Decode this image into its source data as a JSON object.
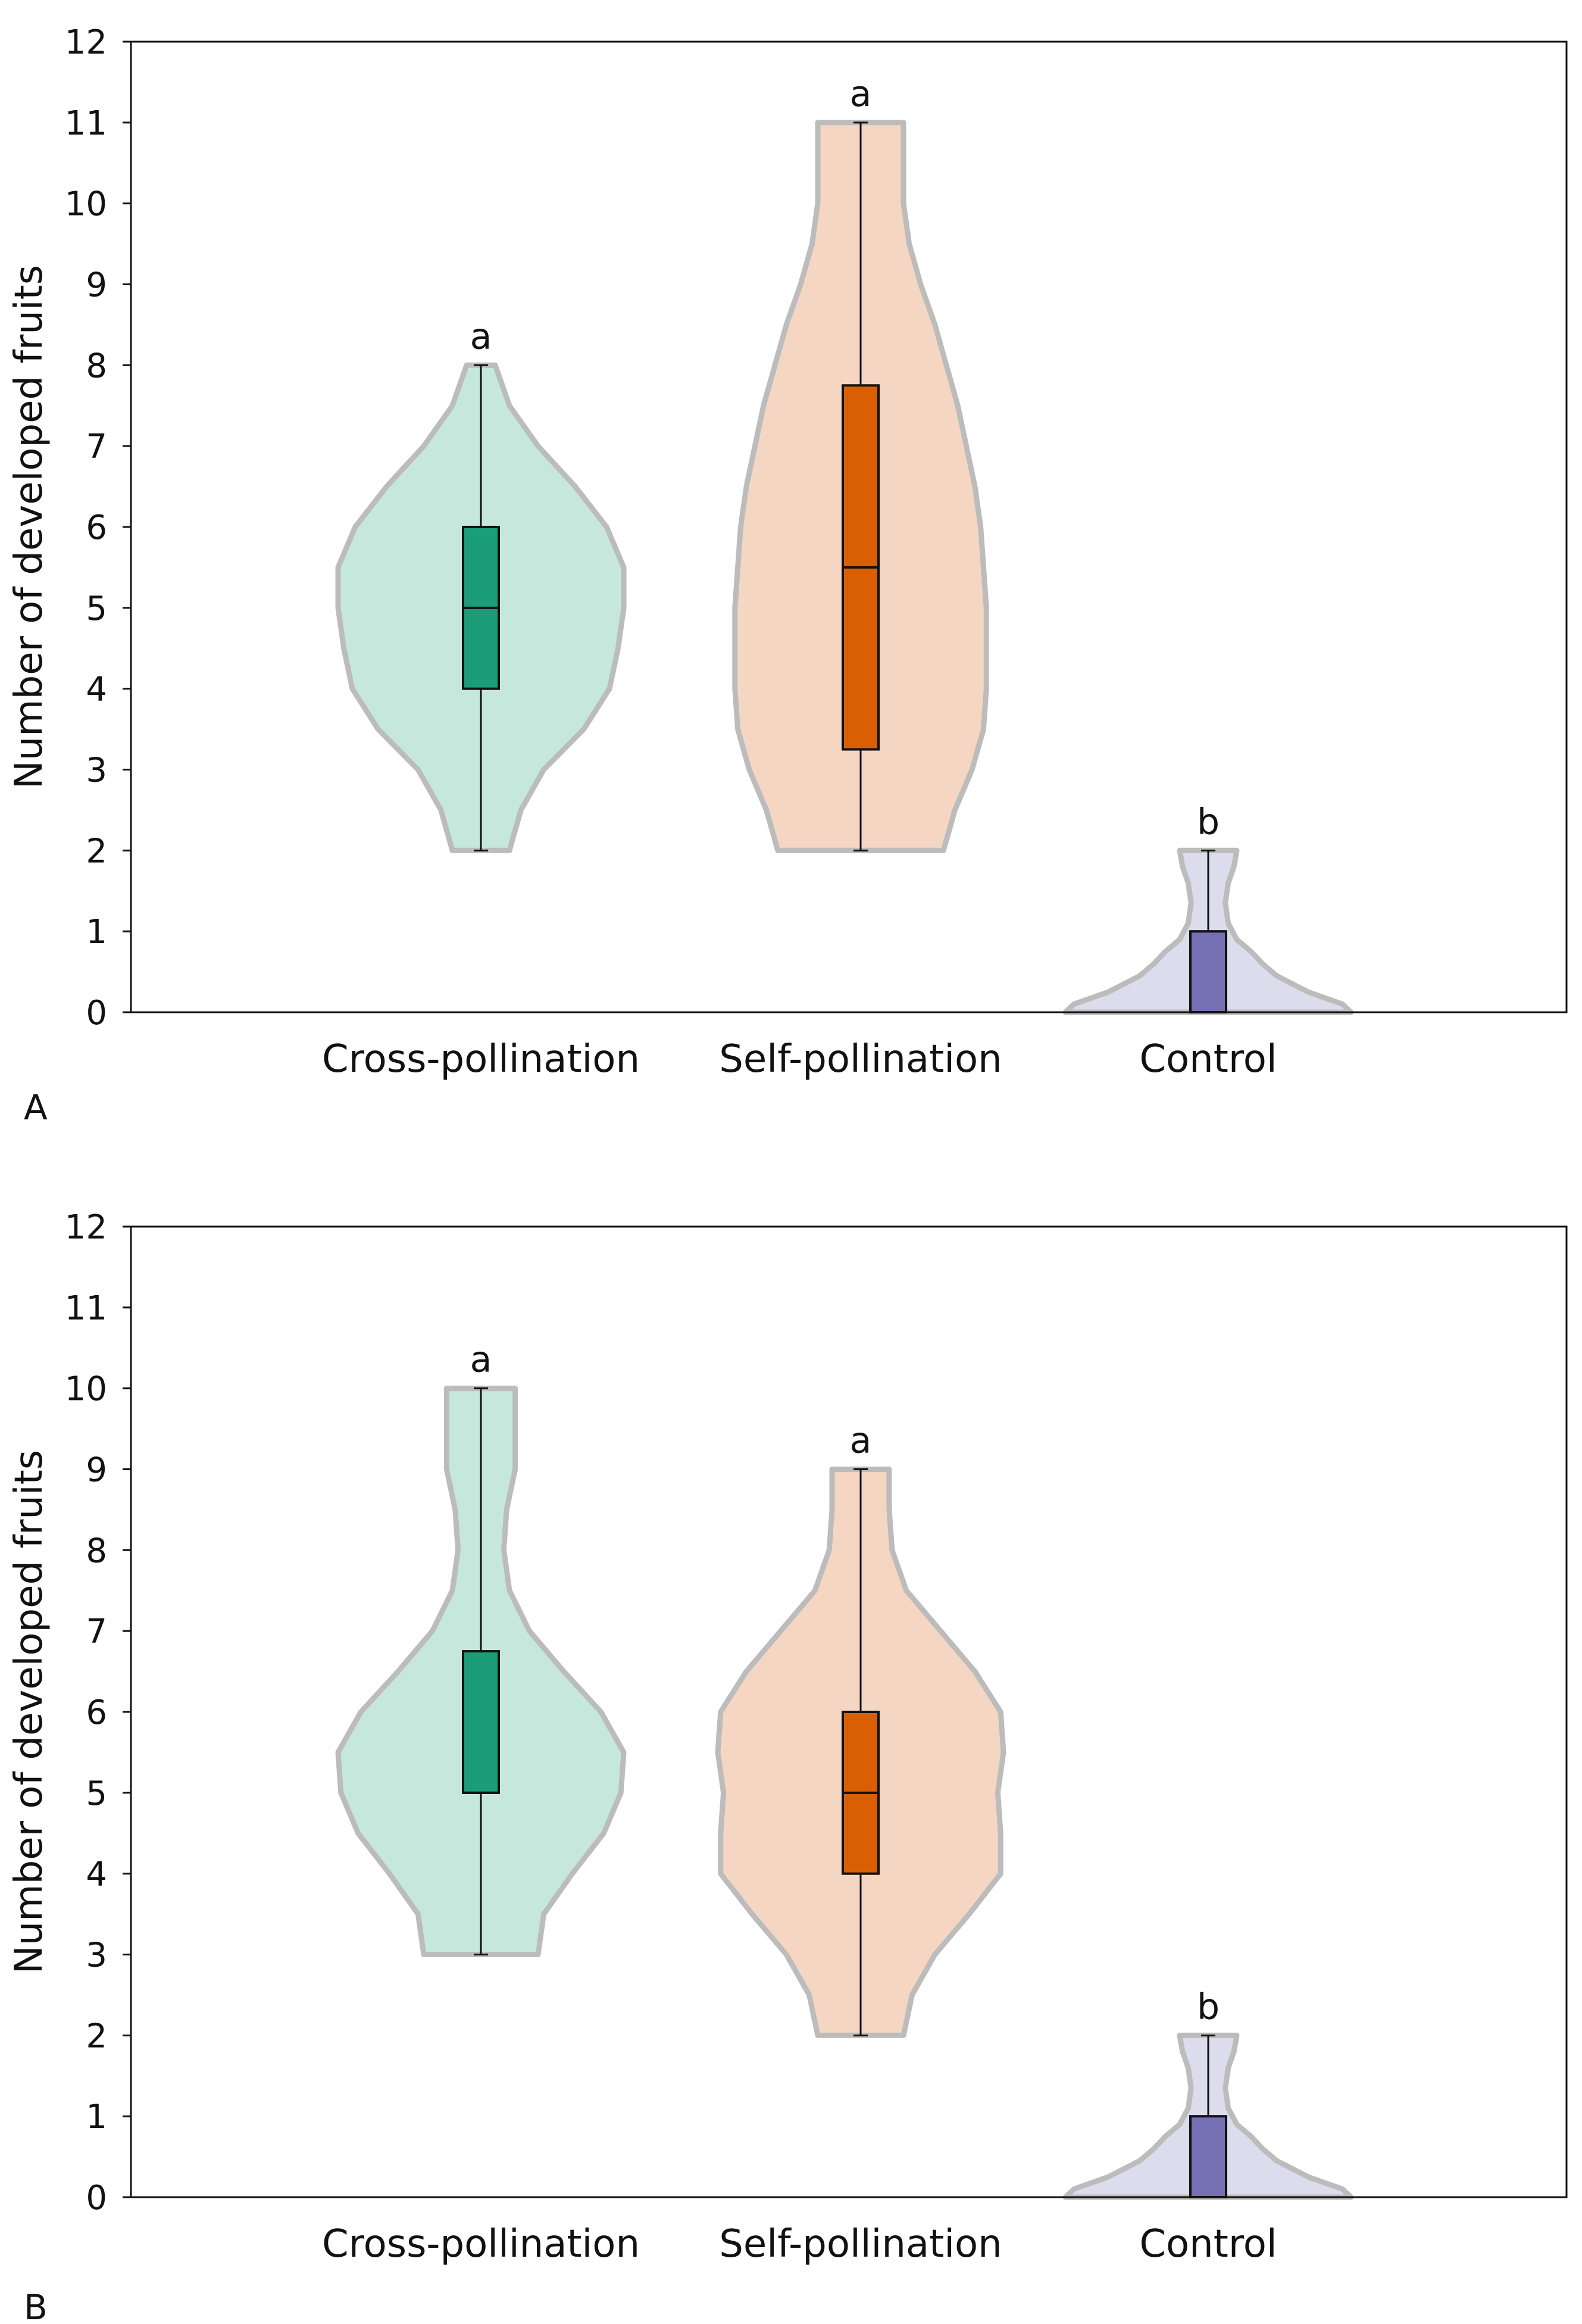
{
  "chart_data": [
    {
      "panel_label": "A",
      "type": "violin",
      "ylabel": "Number of developed fruits",
      "xlabel": "",
      "ylim": [
        0,
        12
      ],
      "yticks": [
        "0",
        "1",
        "2",
        "3",
        "4",
        "5",
        "6",
        "7",
        "8",
        "9",
        "10",
        "11",
        "12"
      ],
      "grid": false,
      "categories": [
        "Cross-pollination",
        "Self-pollination",
        "Control"
      ],
      "series": [
        {
          "name": "Cross-pollination",
          "color": "#1b9e77",
          "fill": "#c6e8dc",
          "significance": "a",
          "min": 2,
          "q1": 4,
          "median": 5,
          "q3": 6,
          "max": 8,
          "density": [
            [
              2,
              0.1
            ],
            [
              2.5,
              0.14
            ],
            [
              3,
              0.22
            ],
            [
              3.5,
              0.36
            ],
            [
              4,
              0.45
            ],
            [
              4.5,
              0.48
            ],
            [
              5,
              0.5
            ],
            [
              5.5,
              0.5
            ],
            [
              6,
              0.44
            ],
            [
              6.5,
              0.33
            ],
            [
              7,
              0.2
            ],
            [
              7.5,
              0.1
            ],
            [
              8,
              0.05
            ]
          ]
        },
        {
          "name": "Self-pollination",
          "color": "#d95f02",
          "fill": "#f5d6c3",
          "significance": "a",
          "min": 2,
          "q1": 3.25,
          "median": 5.5,
          "q3": 7.75,
          "max": 11,
          "density": [
            [
              2,
              0.29
            ],
            [
              2.5,
              0.33
            ],
            [
              3,
              0.39
            ],
            [
              3.5,
              0.43
            ],
            [
              4,
              0.44
            ],
            [
              4.5,
              0.44
            ],
            [
              5,
              0.44
            ],
            [
              5.5,
              0.43
            ],
            [
              6,
              0.42
            ],
            [
              6.5,
              0.4
            ],
            [
              7,
              0.37
            ],
            [
              7.5,
              0.34
            ],
            [
              8,
              0.3
            ],
            [
              8.5,
              0.26
            ],
            [
              9,
              0.21
            ],
            [
              9.5,
              0.17
            ],
            [
              10,
              0.15
            ],
            [
              10.5,
              0.15
            ],
            [
              11,
              0.15
            ]
          ]
        },
        {
          "name": "Control",
          "color": "#7570b3",
          "fill": "#dcdcec",
          "significance": "b",
          "min": 0,
          "q1": 0,
          "median": 0,
          "q3": 1,
          "max": 2,
          "density": [
            [
              0,
              0.5
            ],
            [
              0.1,
              0.47
            ],
            [
              0.25,
              0.35
            ],
            [
              0.45,
              0.24
            ],
            [
              0.6,
              0.19
            ],
            [
              0.75,
              0.15
            ],
            [
              0.9,
              0.1
            ],
            [
              1.1,
              0.07
            ],
            [
              1.35,
              0.06
            ],
            [
              1.6,
              0.07
            ],
            [
              1.8,
              0.09
            ],
            [
              2,
              0.1
            ]
          ]
        }
      ]
    },
    {
      "panel_label": "B",
      "type": "violin",
      "ylabel": "Number of developed fruits",
      "xlabel": "",
      "ylim": [
        0,
        12
      ],
      "yticks": [
        "0",
        "1",
        "2",
        "3",
        "4",
        "5",
        "6",
        "7",
        "8",
        "9",
        "10",
        "11",
        "12"
      ],
      "grid": false,
      "categories": [
        "Cross-pollination",
        "Self-pollination",
        "Control"
      ],
      "series": [
        {
          "name": "Cross-pollination",
          "color": "#1b9e77",
          "fill": "#c6e8dc",
          "significance": "a",
          "min": 3,
          "q1": 5,
          "median": 5,
          "q3": 6.75,
          "max": 10,
          "density": [
            [
              3,
              0.2
            ],
            [
              3.5,
              0.22
            ],
            [
              4,
              0.32
            ],
            [
              4.5,
              0.43
            ],
            [
              5,
              0.49
            ],
            [
              5.5,
              0.5
            ],
            [
              6,
              0.42
            ],
            [
              6.5,
              0.29
            ],
            [
              7,
              0.17
            ],
            [
              7.5,
              0.1
            ],
            [
              8,
              0.08
            ],
            [
              8.5,
              0.09
            ],
            [
              9,
              0.12
            ],
            [
              9.5,
              0.12
            ],
            [
              10,
              0.12
            ]
          ]
        },
        {
          "name": "Self-pollination",
          "color": "#d95f02",
          "fill": "#f5d6c3",
          "significance": "a",
          "min": 2,
          "q1": 4,
          "median": 5,
          "q3": 6,
          "max": 9,
          "density": [
            [
              2,
              0.15
            ],
            [
              2.5,
              0.18
            ],
            [
              3,
              0.26
            ],
            [
              3.5,
              0.38
            ],
            [
              4,
              0.49
            ],
            [
              4.5,
              0.49
            ],
            [
              5,
              0.48
            ],
            [
              5.5,
              0.5
            ],
            [
              6,
              0.49
            ],
            [
              6.5,
              0.4
            ],
            [
              7,
              0.28
            ],
            [
              7.5,
              0.16
            ],
            [
              8,
              0.11
            ],
            [
              8.5,
              0.1
            ],
            [
              9,
              0.1
            ]
          ]
        },
        {
          "name": "Control",
          "color": "#7570b3",
          "fill": "#dcdcec",
          "significance": "b",
          "min": 0,
          "q1": 0,
          "median": 0,
          "q3": 1,
          "max": 2,
          "density": [
            [
              0,
              0.5
            ],
            [
              0.1,
              0.47
            ],
            [
              0.25,
              0.35
            ],
            [
              0.45,
              0.24
            ],
            [
              0.6,
              0.19
            ],
            [
              0.75,
              0.15
            ],
            [
              0.9,
              0.1
            ],
            [
              1.1,
              0.07
            ],
            [
              1.35,
              0.06
            ],
            [
              1.6,
              0.07
            ],
            [
              1.8,
              0.09
            ],
            [
              2,
              0.1
            ]
          ]
        }
      ]
    }
  ]
}
